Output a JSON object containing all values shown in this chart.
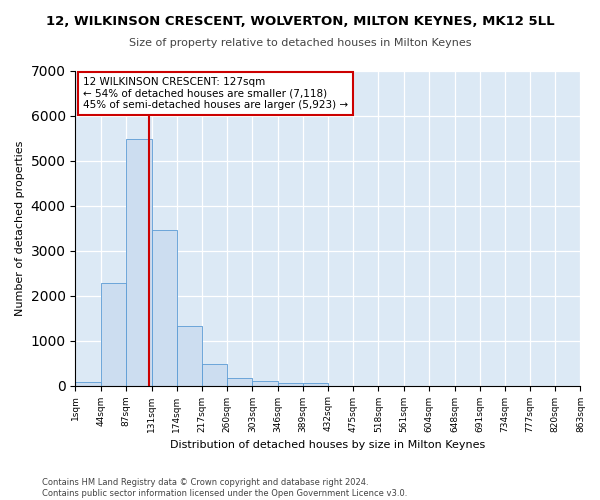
{
  "title": "12, WILKINSON CRESCENT, WOLVERTON, MILTON KEYNES, MK12 5LL",
  "subtitle": "Size of property relative to detached houses in Milton Keynes",
  "xlabel": "Distribution of detached houses by size in Milton Keynes",
  "ylabel": "Number of detached properties",
  "bar_color": "#ccddf0",
  "bar_edge_color": "#5b9bd5",
  "vline_value": 127,
  "vline_color": "#cc0000",
  "bin_edges": [
    1,
    44,
    87,
    131,
    174,
    217,
    260,
    303,
    346,
    389,
    432,
    475,
    518,
    561,
    604,
    648,
    691,
    734,
    777,
    820,
    863
  ],
  "bar_heights": [
    75,
    2280,
    5480,
    3450,
    1320,
    470,
    160,
    100,
    65,
    50,
    0,
    0,
    0,
    0,
    0,
    0,
    0,
    0,
    0,
    0
  ],
  "ylim": [
    0,
    7000
  ],
  "annotation_text": "12 WILKINSON CRESCENT: 127sqm\n← 54% of detached houses are smaller (7,118)\n45% of semi-detached houses are larger (5,923) →",
  "annotation_box_color": "#ffffff",
  "annotation_box_edge_color": "#cc0000",
  "footer_text": "Contains HM Land Registry data © Crown copyright and database right 2024.\nContains public sector information licensed under the Open Government Licence v3.0.",
  "background_color": "#dce9f5",
  "grid_color": "#ffffff"
}
